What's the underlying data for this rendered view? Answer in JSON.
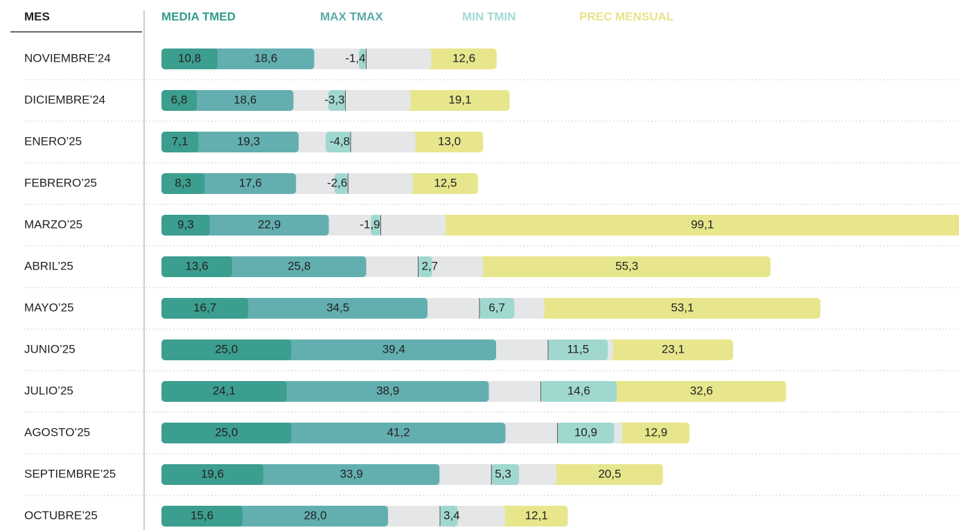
{
  "chart_data": {
    "type": "bar",
    "category_label": "MES",
    "categories": [
      "NOVIEMBRE’24",
      "DICIEMBRE’24",
      "ENERO’25",
      "FEBRERO’25",
      "MARZO’25",
      "ABRIL’25",
      "MAYO’25",
      "JUNIO’25",
      "JULIO’25",
      "AGOSTO’25",
      "SEPTIEMBRE’25",
      "OCTUBRE’25"
    ],
    "series": [
      {
        "name": "MEDIA TMED",
        "color": "#3c9e8e",
        "header_color": "#2f9c87",
        "values": [
          10.8,
          6.8,
          7.1,
          8.3,
          9.3,
          13.6,
          16.7,
          25.0,
          24.1,
          25.0,
          19.6,
          15.6
        ],
        "value_labels": [
          "10,8",
          "6,8",
          "7,1",
          "8,3",
          "9,3",
          "13,6",
          "16,7",
          "25,0",
          "24,1",
          "25,0",
          "19,6",
          "15,6"
        ]
      },
      {
        "name": "MAX TMAX",
        "color": "#63afb0",
        "header_color": "#58aaa9",
        "values": [
          18.6,
          18.6,
          19.3,
          17.6,
          22.9,
          25.8,
          34.5,
          39.4,
          38.9,
          41.2,
          33.9,
          28.0
        ],
        "value_labels": [
          "18,6",
          "18,6",
          "19,3",
          "17,6",
          "22,9",
          "25,8",
          "34,5",
          "39,4",
          "38,9",
          "41,2",
          "33,9",
          "28,0"
        ]
      },
      {
        "name": "MIN TMIN",
        "color": "#a0d8d0",
        "header_color": "#a3d9d2",
        "values": [
          -1.4,
          -3.3,
          -4.8,
          -2.6,
          -1.9,
          2.7,
          6.7,
          11.5,
          14.6,
          10.9,
          5.3,
          3.4
        ],
        "value_labels": [
          "-1,4",
          "-3,3",
          "-4,8",
          "-2,6",
          "-1,9",
          "2,7",
          "6,7",
          "11,5",
          "14,6",
          "10,9",
          "5,3",
          "3,4"
        ]
      },
      {
        "name": "PREC MENSUAL",
        "color": "#e8e68c",
        "header_color": "#e5e38a",
        "values": [
          12.6,
          19.1,
          13.0,
          12.5,
          99.1,
          55.3,
          53.1,
          23.1,
          32.6,
          12.9,
          20.5,
          12.1
        ],
        "value_labels": [
          "12,6",
          "19,1",
          "13,0",
          "12,5",
          "99,1",
          "55,3",
          "53,1",
          "23,1",
          "32,6",
          "12,9",
          "20,5",
          "12,1"
        ]
      }
    ]
  }
}
